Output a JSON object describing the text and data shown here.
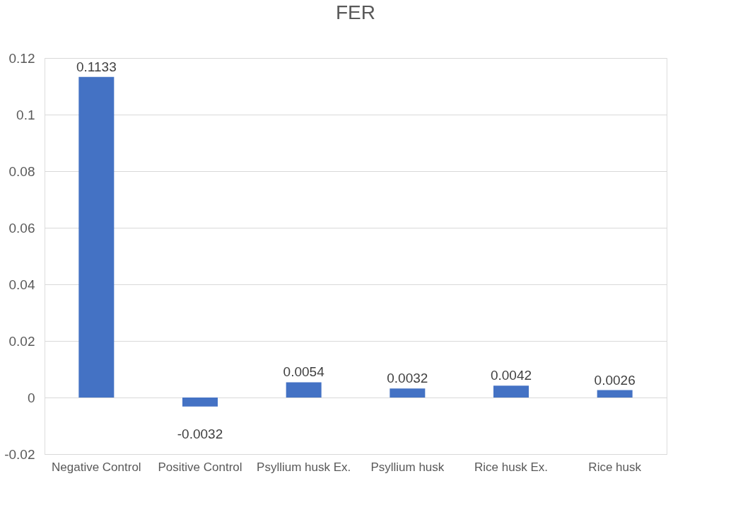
{
  "chart_data": {
    "type": "bar",
    "title": "FER",
    "categories": [
      "Negative Control",
      "Positive Control",
      "Psyllium husk Ex.",
      "Psyllium husk",
      "Rice husk Ex.",
      "Rice husk"
    ],
    "values": [
      0.1133,
      -0.0032,
      0.0054,
      0.0032,
      0.0042,
      0.0026
    ],
    "color": "#4472c4",
    "ylim": [
      -0.02,
      0.12
    ],
    "yticks": [
      -0.02,
      0,
      0.02,
      0.04,
      0.06,
      0.08,
      0.1,
      0.12
    ],
    "grid": "y",
    "data_labels": true
  }
}
